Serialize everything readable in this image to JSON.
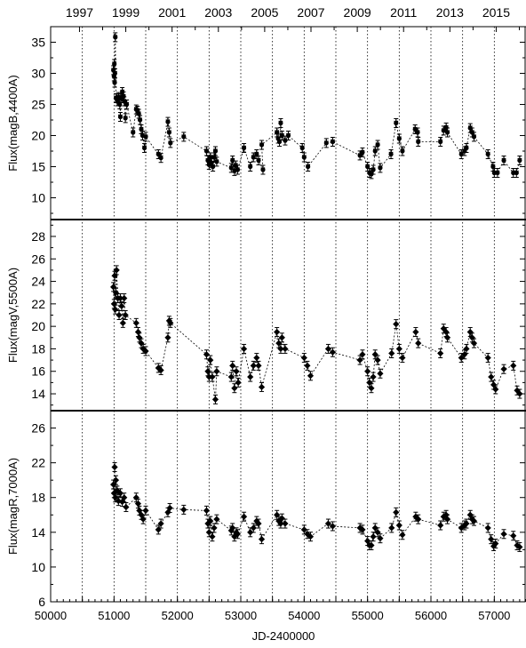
{
  "chart_data": {
    "type": "scatter",
    "xlabel": "JD-2400000",
    "x_ticks": [
      50000,
      50500,
      51000,
      51500,
      52000,
      52500,
      53000,
      53500,
      54000,
      54500,
      55000,
      55500,
      56000,
      56500,
      57000
    ],
    "x_tick_labels": [
      "50000",
      "51000",
      "52000",
      "53000",
      "54000",
      "55000",
      "56000",
      "57000"
    ],
    "xlim": [
      50000,
      57500
    ],
    "top_axis": {
      "years": [
        "1997",
        "1999",
        "2001",
        "2003",
        "2005",
        "2007",
        "2009",
        "2011",
        "2013",
        "2015"
      ],
      "minor_years": [
        "1998",
        "2000",
        "2002",
        "2004",
        "2006",
        "2008",
        "2010",
        "2012",
        "2014",
        "2016"
      ]
    },
    "year_grid_lines_jd": [
      50500,
      51000,
      51500,
      52000,
      52500,
      53000,
      53500,
      54000,
      54500,
      55000,
      55500,
      56000,
      56500,
      57000
    ],
    "panels": [
      {
        "ylabel": "Flux(magB,4400A)",
        "ylim": [
          6.5,
          37.5
        ],
        "yticks": [
          10,
          15,
          20,
          25,
          30,
          35
        ],
        "marker": "star",
        "points": [
          [
            50990,
            30.5
          ],
          [
            51000,
            29.5
          ],
          [
            51005,
            31.5
          ],
          [
            51010,
            28.5
          ],
          [
            51015,
            30.0
          ],
          [
            51020,
            35.8
          ],
          [
            51030,
            26.0
          ],
          [
            51050,
            25.5
          ],
          [
            51070,
            26.2
          ],
          [
            51090,
            25.0
          ],
          [
            51100,
            23.0
          ],
          [
            51110,
            26.0
          ],
          [
            51130,
            27.0
          ],
          [
            51150,
            26.3
          ],
          [
            51160,
            25.5
          ],
          [
            51180,
            22.8
          ],
          [
            51200,
            25.0
          ],
          [
            51300,
            20.5
          ],
          [
            51350,
            24.2
          ],
          [
            51370,
            24.0
          ],
          [
            51390,
            23.5
          ],
          [
            51410,
            22.5
          ],
          [
            51430,
            21.0
          ],
          [
            51450,
            20.0
          ],
          [
            51480,
            18.0
          ],
          [
            51500,
            19.8
          ],
          [
            51700,
            17.0
          ],
          [
            51740,
            16.4
          ],
          [
            51850,
            22.2
          ],
          [
            51870,
            20.5
          ],
          [
            51890,
            18.8
          ],
          [
            52100,
            19.8
          ],
          [
            52460,
            17.5
          ],
          [
            52480,
            16.0
          ],
          [
            52500,
            15.3
          ],
          [
            52520,
            16.5
          ],
          [
            52540,
            15.6
          ],
          [
            52560,
            15.0
          ],
          [
            52580,
            16.5
          ],
          [
            52600,
            17.5
          ],
          [
            52620,
            15.8
          ],
          [
            52850,
            14.8
          ],
          [
            52870,
            16.0
          ],
          [
            52900,
            14.3
          ],
          [
            52920,
            15.2
          ],
          [
            52950,
            14.5
          ],
          [
            53050,
            18.0
          ],
          [
            53150,
            15.0
          ],
          [
            53200,
            16.5
          ],
          [
            53250,
            17.0
          ],
          [
            53280,
            16.0
          ],
          [
            53350,
            14.5
          ],
          [
            53330,
            18.5
          ],
          [
            53570,
            20.5
          ],
          [
            53590,
            19.5
          ],
          [
            53610,
            19.0
          ],
          [
            53630,
            22.0
          ],
          [
            53650,
            20.0
          ],
          [
            53700,
            19.2
          ],
          [
            53750,
            20.0
          ],
          [
            53970,
            18.0
          ],
          [
            54000,
            16.5
          ],
          [
            54060,
            15.0
          ],
          [
            54350,
            18.8
          ],
          [
            54450,
            19.0
          ],
          [
            54880,
            16.8
          ],
          [
            54920,
            17.3
          ],
          [
            55000,
            15.0
          ],
          [
            55030,
            14.0
          ],
          [
            55060,
            13.8
          ],
          [
            55090,
            14.5
          ],
          [
            55120,
            17.5
          ],
          [
            55160,
            18.5
          ],
          [
            55200,
            14.8
          ],
          [
            55370,
            17.0
          ],
          [
            55450,
            22.0
          ],
          [
            55500,
            19.5
          ],
          [
            55550,
            17.5
          ],
          [
            55750,
            21.0
          ],
          [
            55790,
            20.5
          ],
          [
            55800,
            19.0
          ],
          [
            56150,
            19.0
          ],
          [
            56200,
            20.8
          ],
          [
            56240,
            21.3
          ],
          [
            56260,
            20.5
          ],
          [
            56480,
            17.0
          ],
          [
            56530,
            17.5
          ],
          [
            56560,
            18.0
          ],
          [
            56620,
            21.2
          ],
          [
            56650,
            20.5
          ],
          [
            56680,
            19.8
          ],
          [
            56900,
            17.0
          ],
          [
            56980,
            15.0
          ],
          [
            57000,
            14.0
          ],
          [
            57050,
            14.0
          ],
          [
            57150,
            16.0
          ],
          [
            57300,
            14.0
          ],
          [
            57350,
            14.0
          ],
          [
            57400,
            16.0
          ]
        ]
      },
      {
        "ylabel": "Flux(magV,5500A)",
        "ylim": [
          12.5,
          29.5
        ],
        "yticks": [
          14,
          16,
          18,
          20,
          22,
          24,
          26,
          28
        ],
        "marker": "diamond",
        "points": [
          [
            50990,
            23.5
          ],
          [
            51000,
            22.0
          ],
          [
            51010,
            24.5
          ],
          [
            51020,
            21.5
          ],
          [
            51030,
            23.0
          ],
          [
            51040,
            25.0
          ],
          [
            51060,
            22.5
          ],
          [
            51080,
            21.0
          ],
          [
            51100,
            22.5
          ],
          [
            51120,
            21.8
          ],
          [
            51140,
            20.3
          ],
          [
            51160,
            22.5
          ],
          [
            51180,
            21.0
          ],
          [
            51350,
            20.3
          ],
          [
            51380,
            19.5
          ],
          [
            51400,
            19.0
          ],
          [
            51430,
            18.5
          ],
          [
            51460,
            18.0
          ],
          [
            51500,
            17.8
          ],
          [
            51700,
            16.3
          ],
          [
            51740,
            16.1
          ],
          [
            51850,
            19.0
          ],
          [
            51870,
            20.5
          ],
          [
            51890,
            20.3
          ],
          [
            52460,
            17.5
          ],
          [
            52480,
            16.0
          ],
          [
            52500,
            15.5
          ],
          [
            52520,
            17.0
          ],
          [
            52550,
            15.5
          ],
          [
            52600,
            13.5
          ],
          [
            52620,
            16.0
          ],
          [
            52850,
            15.5
          ],
          [
            52870,
            16.5
          ],
          [
            52900,
            14.5
          ],
          [
            52930,
            16.0
          ],
          [
            52960,
            15.0
          ],
          [
            53050,
            18.0
          ],
          [
            53150,
            15.5
          ],
          [
            53200,
            16.5
          ],
          [
            53250,
            17.2
          ],
          [
            53280,
            16.5
          ],
          [
            53330,
            14.6
          ],
          [
            53570,
            19.5
          ],
          [
            53600,
            18.5
          ],
          [
            53630,
            18.0
          ],
          [
            53650,
            19.0
          ],
          [
            53700,
            18.0
          ],
          [
            54000,
            17.2
          ],
          [
            54050,
            16.5
          ],
          [
            54100,
            15.6
          ],
          [
            54380,
            18.0
          ],
          [
            54450,
            17.7
          ],
          [
            54880,
            17.0
          ],
          [
            54920,
            17.5
          ],
          [
            55000,
            16.0
          ],
          [
            55030,
            15.0
          ],
          [
            55060,
            14.5
          ],
          [
            55090,
            15.5
          ],
          [
            55120,
            17.5
          ],
          [
            55160,
            17.0
          ],
          [
            55200,
            15.8
          ],
          [
            55380,
            17.6
          ],
          [
            55450,
            20.2
          ],
          [
            55500,
            18.0
          ],
          [
            55550,
            17.2
          ],
          [
            55760,
            19.5
          ],
          [
            55800,
            18.5
          ],
          [
            56150,
            17.6
          ],
          [
            56200,
            19.8
          ],
          [
            56240,
            19.5
          ],
          [
            56260,
            19.0
          ],
          [
            56480,
            17.2
          ],
          [
            56530,
            17.5
          ],
          [
            56560,
            18.0
          ],
          [
            56620,
            19.5
          ],
          [
            56650,
            19.0
          ],
          [
            56680,
            18.5
          ],
          [
            56900,
            17.2
          ],
          [
            56950,
            15.5
          ],
          [
            56990,
            14.8
          ],
          [
            57020,
            14.4
          ],
          [
            57150,
            16.2
          ],
          [
            57300,
            16.5
          ],
          [
            57360,
            14.3
          ],
          [
            57400,
            14.0
          ]
        ]
      },
      {
        "ylabel": "Flux(magR,7000A)",
        "ylim": [
          6,
          28
        ],
        "yticks": [
          6,
          10,
          14,
          18,
          22,
          26
        ],
        "marker": "diamond",
        "points": [
          [
            50990,
            19.5
          ],
          [
            51000,
            18.5
          ],
          [
            51010,
            21.5
          ],
          [
            51020,
            18.0
          ],
          [
            51030,
            20.0
          ],
          [
            51050,
            18.8
          ],
          [
            51070,
            17.6
          ],
          [
            51100,
            18.5
          ],
          [
            51130,
            17.5
          ],
          [
            51160,
            18.0
          ],
          [
            51190,
            16.9
          ],
          [
            51350,
            18.0
          ],
          [
            51380,
            17.3
          ],
          [
            51400,
            16.5
          ],
          [
            51430,
            16.0
          ],
          [
            51460,
            15.5
          ],
          [
            51500,
            16.5
          ],
          [
            51700,
            14.3
          ],
          [
            51740,
            15.0
          ],
          [
            51850,
            16.3
          ],
          [
            51880,
            16.8
          ],
          [
            52100,
            16.6
          ],
          [
            52460,
            16.5
          ],
          [
            52480,
            15.0
          ],
          [
            52500,
            14.0
          ],
          [
            52520,
            15.3
          ],
          [
            52550,
            13.5
          ],
          [
            52580,
            14.5
          ],
          [
            52620,
            15.5
          ],
          [
            52850,
            14.2
          ],
          [
            52870,
            14.5
          ],
          [
            52900,
            13.5
          ],
          [
            52930,
            14.0
          ],
          [
            52950,
            13.8
          ],
          [
            53050,
            15.8
          ],
          [
            53150,
            14.0
          ],
          [
            53200,
            14.5
          ],
          [
            53250,
            15.3
          ],
          [
            53280,
            15.0
          ],
          [
            53330,
            13.2
          ],
          [
            53570,
            16.0
          ],
          [
            53600,
            15.3
          ],
          [
            53630,
            15.0
          ],
          [
            53650,
            15.6
          ],
          [
            53700,
            15.0
          ],
          [
            54000,
            14.3
          ],
          [
            54050,
            13.8
          ],
          [
            54100,
            13.5
          ],
          [
            54380,
            15.0
          ],
          [
            54450,
            14.7
          ],
          [
            54880,
            14.5
          ],
          [
            54920,
            14.3
          ],
          [
            55000,
            13.0
          ],
          [
            55030,
            12.5
          ],
          [
            55060,
            12.5
          ],
          [
            55090,
            13.5
          ],
          [
            55120,
            14.5
          ],
          [
            55160,
            14.0
          ],
          [
            55200,
            13.3
          ],
          [
            55380,
            14.5
          ],
          [
            55450,
            16.3
          ],
          [
            55500,
            14.8
          ],
          [
            55550,
            13.7
          ],
          [
            55760,
            15.8
          ],
          [
            55800,
            15.5
          ],
          [
            56150,
            14.8
          ],
          [
            56200,
            15.8
          ],
          [
            56240,
            16.0
          ],
          [
            56260,
            15.5
          ],
          [
            56480,
            14.5
          ],
          [
            56530,
            14.8
          ],
          [
            56560,
            15.0
          ],
          [
            56620,
            16.0
          ],
          [
            56650,
            15.5
          ],
          [
            56680,
            15.3
          ],
          [
            56900,
            14.5
          ],
          [
            56950,
            13.2
          ],
          [
            56990,
            12.4
          ],
          [
            57020,
            12.7
          ],
          [
            57150,
            13.8
          ],
          [
            57300,
            13.6
          ],
          [
            57360,
            12.5
          ],
          [
            57400,
            12.3
          ]
        ]
      }
    ]
  }
}
